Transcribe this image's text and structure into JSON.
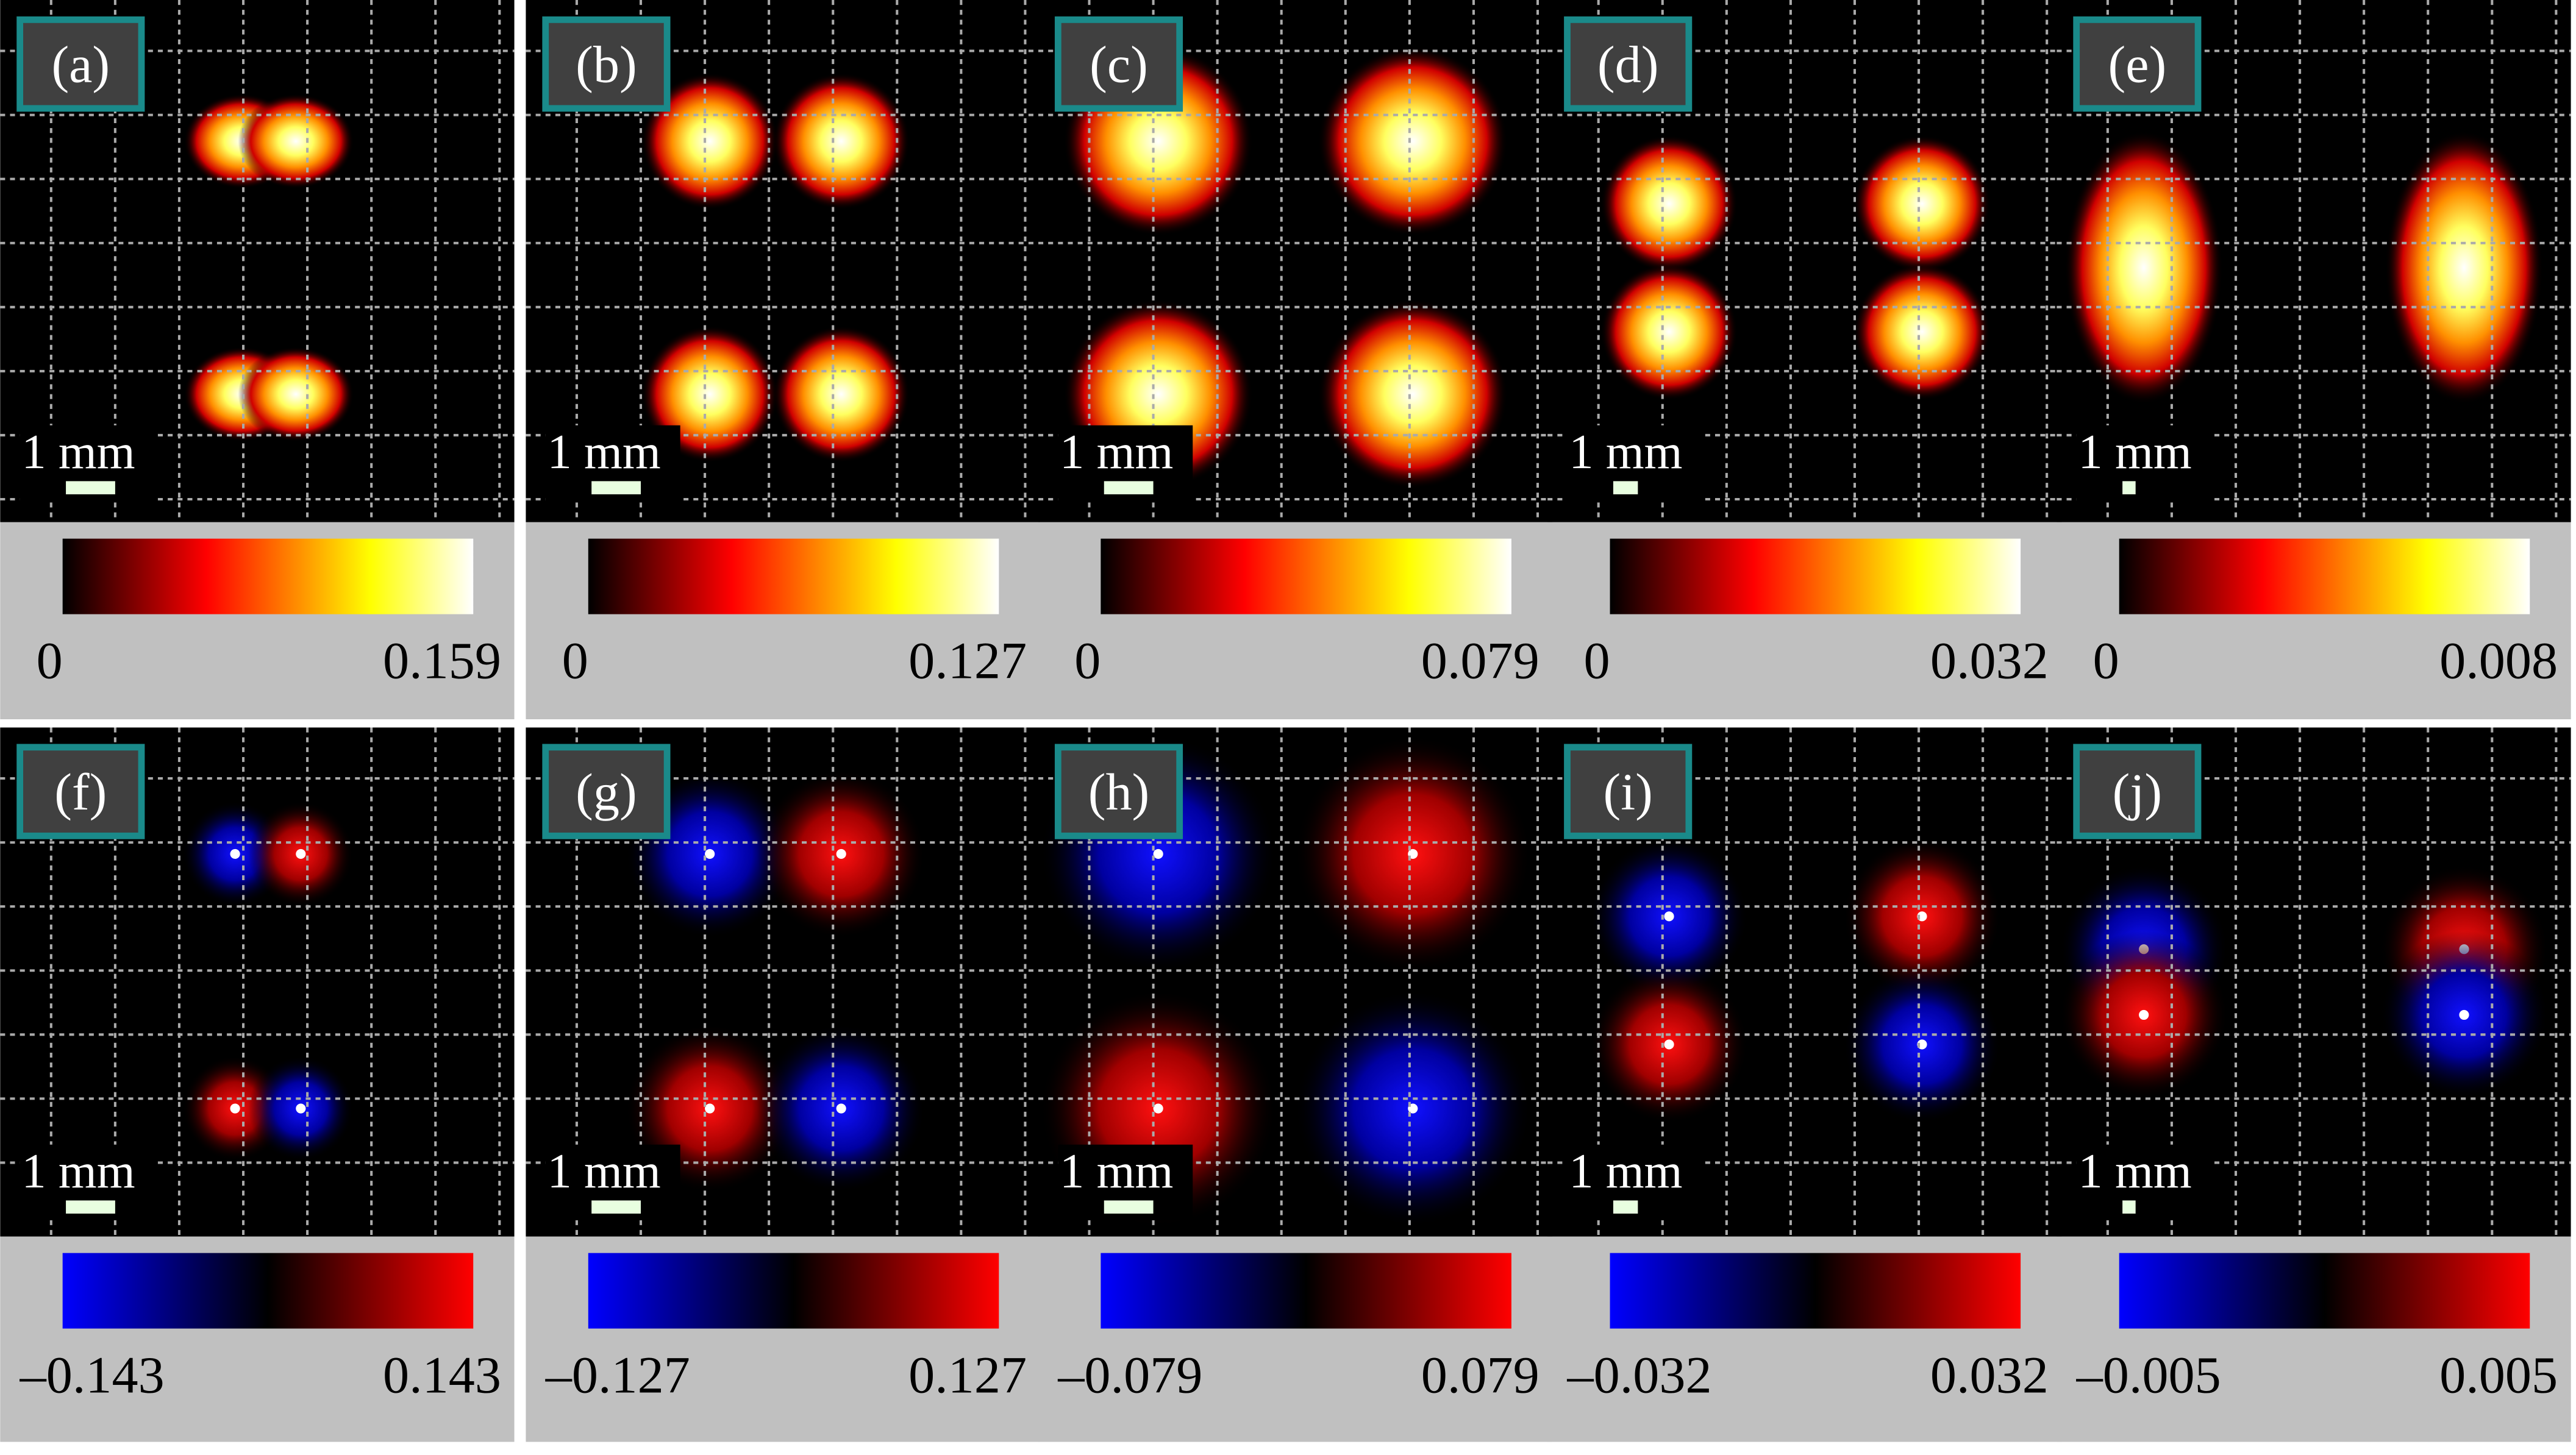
{
  "panels": [
    {
      "label": "(a)",
      "scale": "1 mm",
      "cmin": "0",
      "cmax": "0.159"
    },
    {
      "label": "(b)",
      "scale": "1 mm",
      "cmin": "0",
      "cmax": "0.127"
    },
    {
      "label": "(c)",
      "scale": "1 mm",
      "cmin": "0",
      "cmax": "0.079"
    },
    {
      "label": "(d)",
      "scale": "1 mm",
      "cmin": "0",
      "cmax": "0.032"
    },
    {
      "label": "(e)",
      "scale": "1 mm",
      "cmin": "0",
      "cmax": "0.008"
    },
    {
      "label": "(f)",
      "scale": "1 mm",
      "cmin": "–0.143",
      "cmax": "0.143"
    },
    {
      "label": "(g)",
      "scale": "1 mm",
      "cmin": "–0.127",
      "cmax": "0.127"
    },
    {
      "label": "(h)",
      "scale": "1 mm",
      "cmin": "–0.079",
      "cmax": "0.079"
    },
    {
      "label": "(i)",
      "scale": "1 mm",
      "cmin": "–0.032",
      "cmax": "0.032"
    },
    {
      "label": "(j)",
      "scale": "1 mm",
      "cmin": "–0.005",
      "cmax": "0.005"
    }
  ]
}
